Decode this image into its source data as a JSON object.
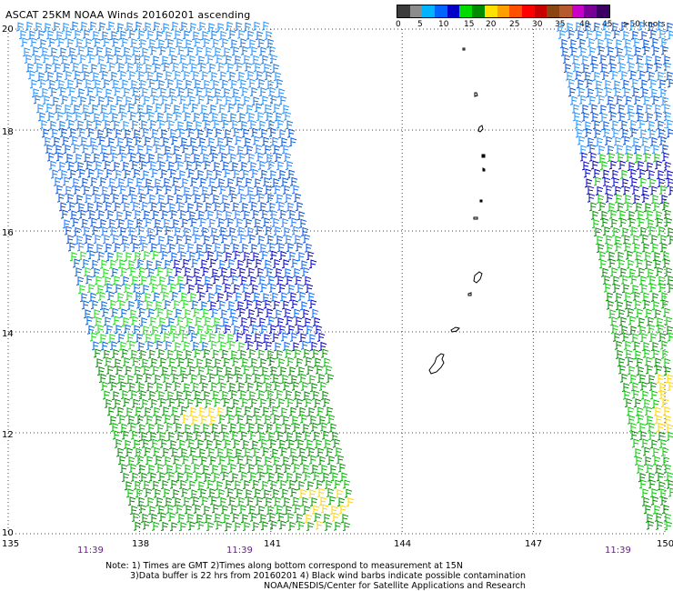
{
  "title": "ASCAT 25KM NOAA Winds 20160201 ascending",
  "legend": {
    "colors": [
      "#3c3c3c",
      "#8c8c8c",
      "#00b4ff",
      "#0064ff",
      "#0000c8",
      "#00dc00",
      "#008c00",
      "#ffe100",
      "#ffa000",
      "#ff5000",
      "#ff0000",
      "#c80000",
      "#8b4513",
      "#b45a2d",
      "#c800c8",
      "#780096",
      "#3c0064"
    ],
    "labels": [
      "0",
      "5",
      "10",
      "15",
      "20",
      "25",
      "30",
      "35",
      "40",
      "45",
      ">50 knots"
    ]
  },
  "y_labels": [
    "20",
    "18",
    "16",
    "14",
    "12",
    "10"
  ],
  "x_labels": [
    "135",
    "138",
    "141",
    "144",
    "147",
    "150"
  ],
  "times": [
    "11:39",
    "11:39",
    "11:39"
  ],
  "notes": [
    "Note: 1) Times are GMT 2)Times along bottom correspond to measurement at 15N",
    "3)Data buffer is 22 hrs from 20160201 4) Black wind barbs indicate possible contamination",
    "NOAA/NESDIS/Center for Satellite Applications and Research"
  ],
  "map": {
    "lon_range": [
      135,
      150
    ],
    "lat_range": [
      10,
      20
    ],
    "wind_dir": "easterly trade winds"
  }
}
